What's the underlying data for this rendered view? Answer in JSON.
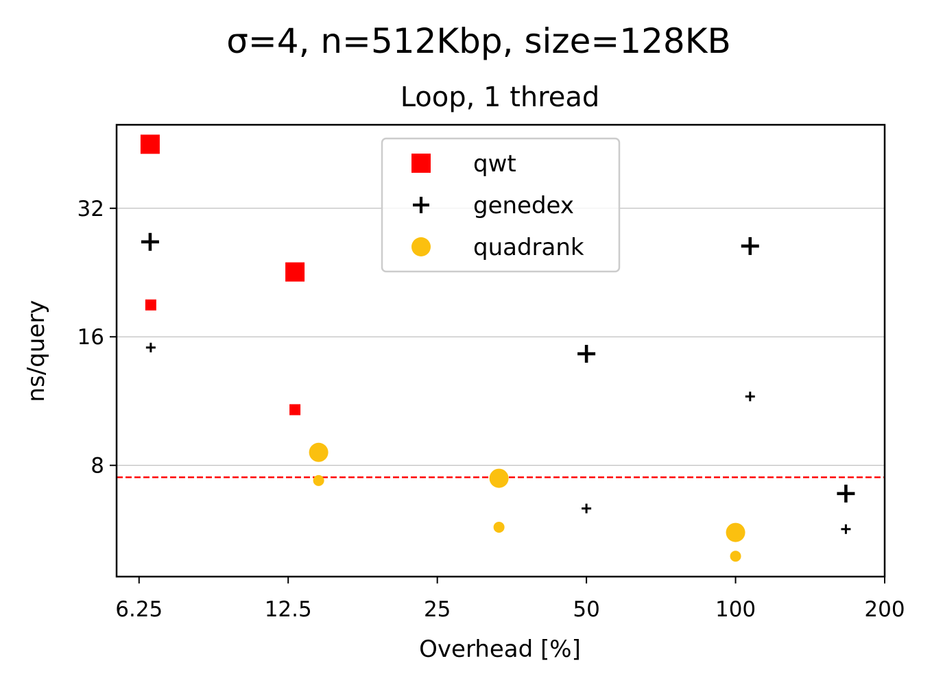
{
  "chart_data": {
    "type": "scatter",
    "title": "σ=4, n=512Kbp, size=128KB",
    "subtitle": "Loop, 1 thread",
    "xlabel": "Overhead [%]",
    "ylabel": "ns/query",
    "xscale": "log2",
    "yscale": "log2",
    "xlim": [
      5.63,
      200
    ],
    "ylim": [
      4.39,
      50.2
    ],
    "xticks": [
      6.25,
      12.5,
      25,
      50,
      100,
      200
    ],
    "xtick_labels": [
      "6.25",
      "12.5",
      "25",
      "50",
      "100",
      "200"
    ],
    "yticks": [
      8,
      16,
      32
    ],
    "ytick_labels": [
      "8",
      "16",
      "32"
    ],
    "grid": "horizontal",
    "legend_position": "top-center",
    "reference_line": {
      "y": 7.5,
      "color": "#ff0000",
      "style": "dashed"
    },
    "series": [
      {
        "name": "qwt",
        "marker": "square",
        "color": "#ff0000",
        "points": [
          {
            "x": 6.58,
            "y": 45.2,
            "size": "large"
          },
          {
            "x": 6.6,
            "y": 19.0,
            "size": "small"
          },
          {
            "x": 12.9,
            "y": 22.7,
            "size": "large"
          },
          {
            "x": 12.9,
            "y": 10.8,
            "size": "small"
          }
        ]
      },
      {
        "name": "genedex",
        "marker": "plus",
        "color": "#000000",
        "points": [
          {
            "x": 6.58,
            "y": 26.7,
            "size": "large"
          },
          {
            "x": 6.6,
            "y": 15.1,
            "size": "small"
          },
          {
            "x": 50,
            "y": 14.6,
            "size": "large"
          },
          {
            "x": 50,
            "y": 6.34,
            "size": "small"
          },
          {
            "x": 107,
            "y": 26.1,
            "size": "large"
          },
          {
            "x": 107,
            "y": 11.6,
            "size": "small"
          },
          {
            "x": 167,
            "y": 6.87,
            "size": "large"
          },
          {
            "x": 167,
            "y": 5.67,
            "size": "small"
          }
        ]
      },
      {
        "name": "quadrank",
        "marker": "circle",
        "color": "#fbc00f",
        "points": [
          {
            "x": 14.4,
            "y": 8.58,
            "size": "large"
          },
          {
            "x": 14.4,
            "y": 7.37,
            "size": "small"
          },
          {
            "x": 33.3,
            "y": 7.46,
            "size": "large"
          },
          {
            "x": 33.3,
            "y": 5.73,
            "size": "small"
          },
          {
            "x": 100,
            "y": 5.57,
            "size": "large"
          },
          {
            "x": 100,
            "y": 4.9,
            "size": "small"
          }
        ]
      }
    ]
  }
}
